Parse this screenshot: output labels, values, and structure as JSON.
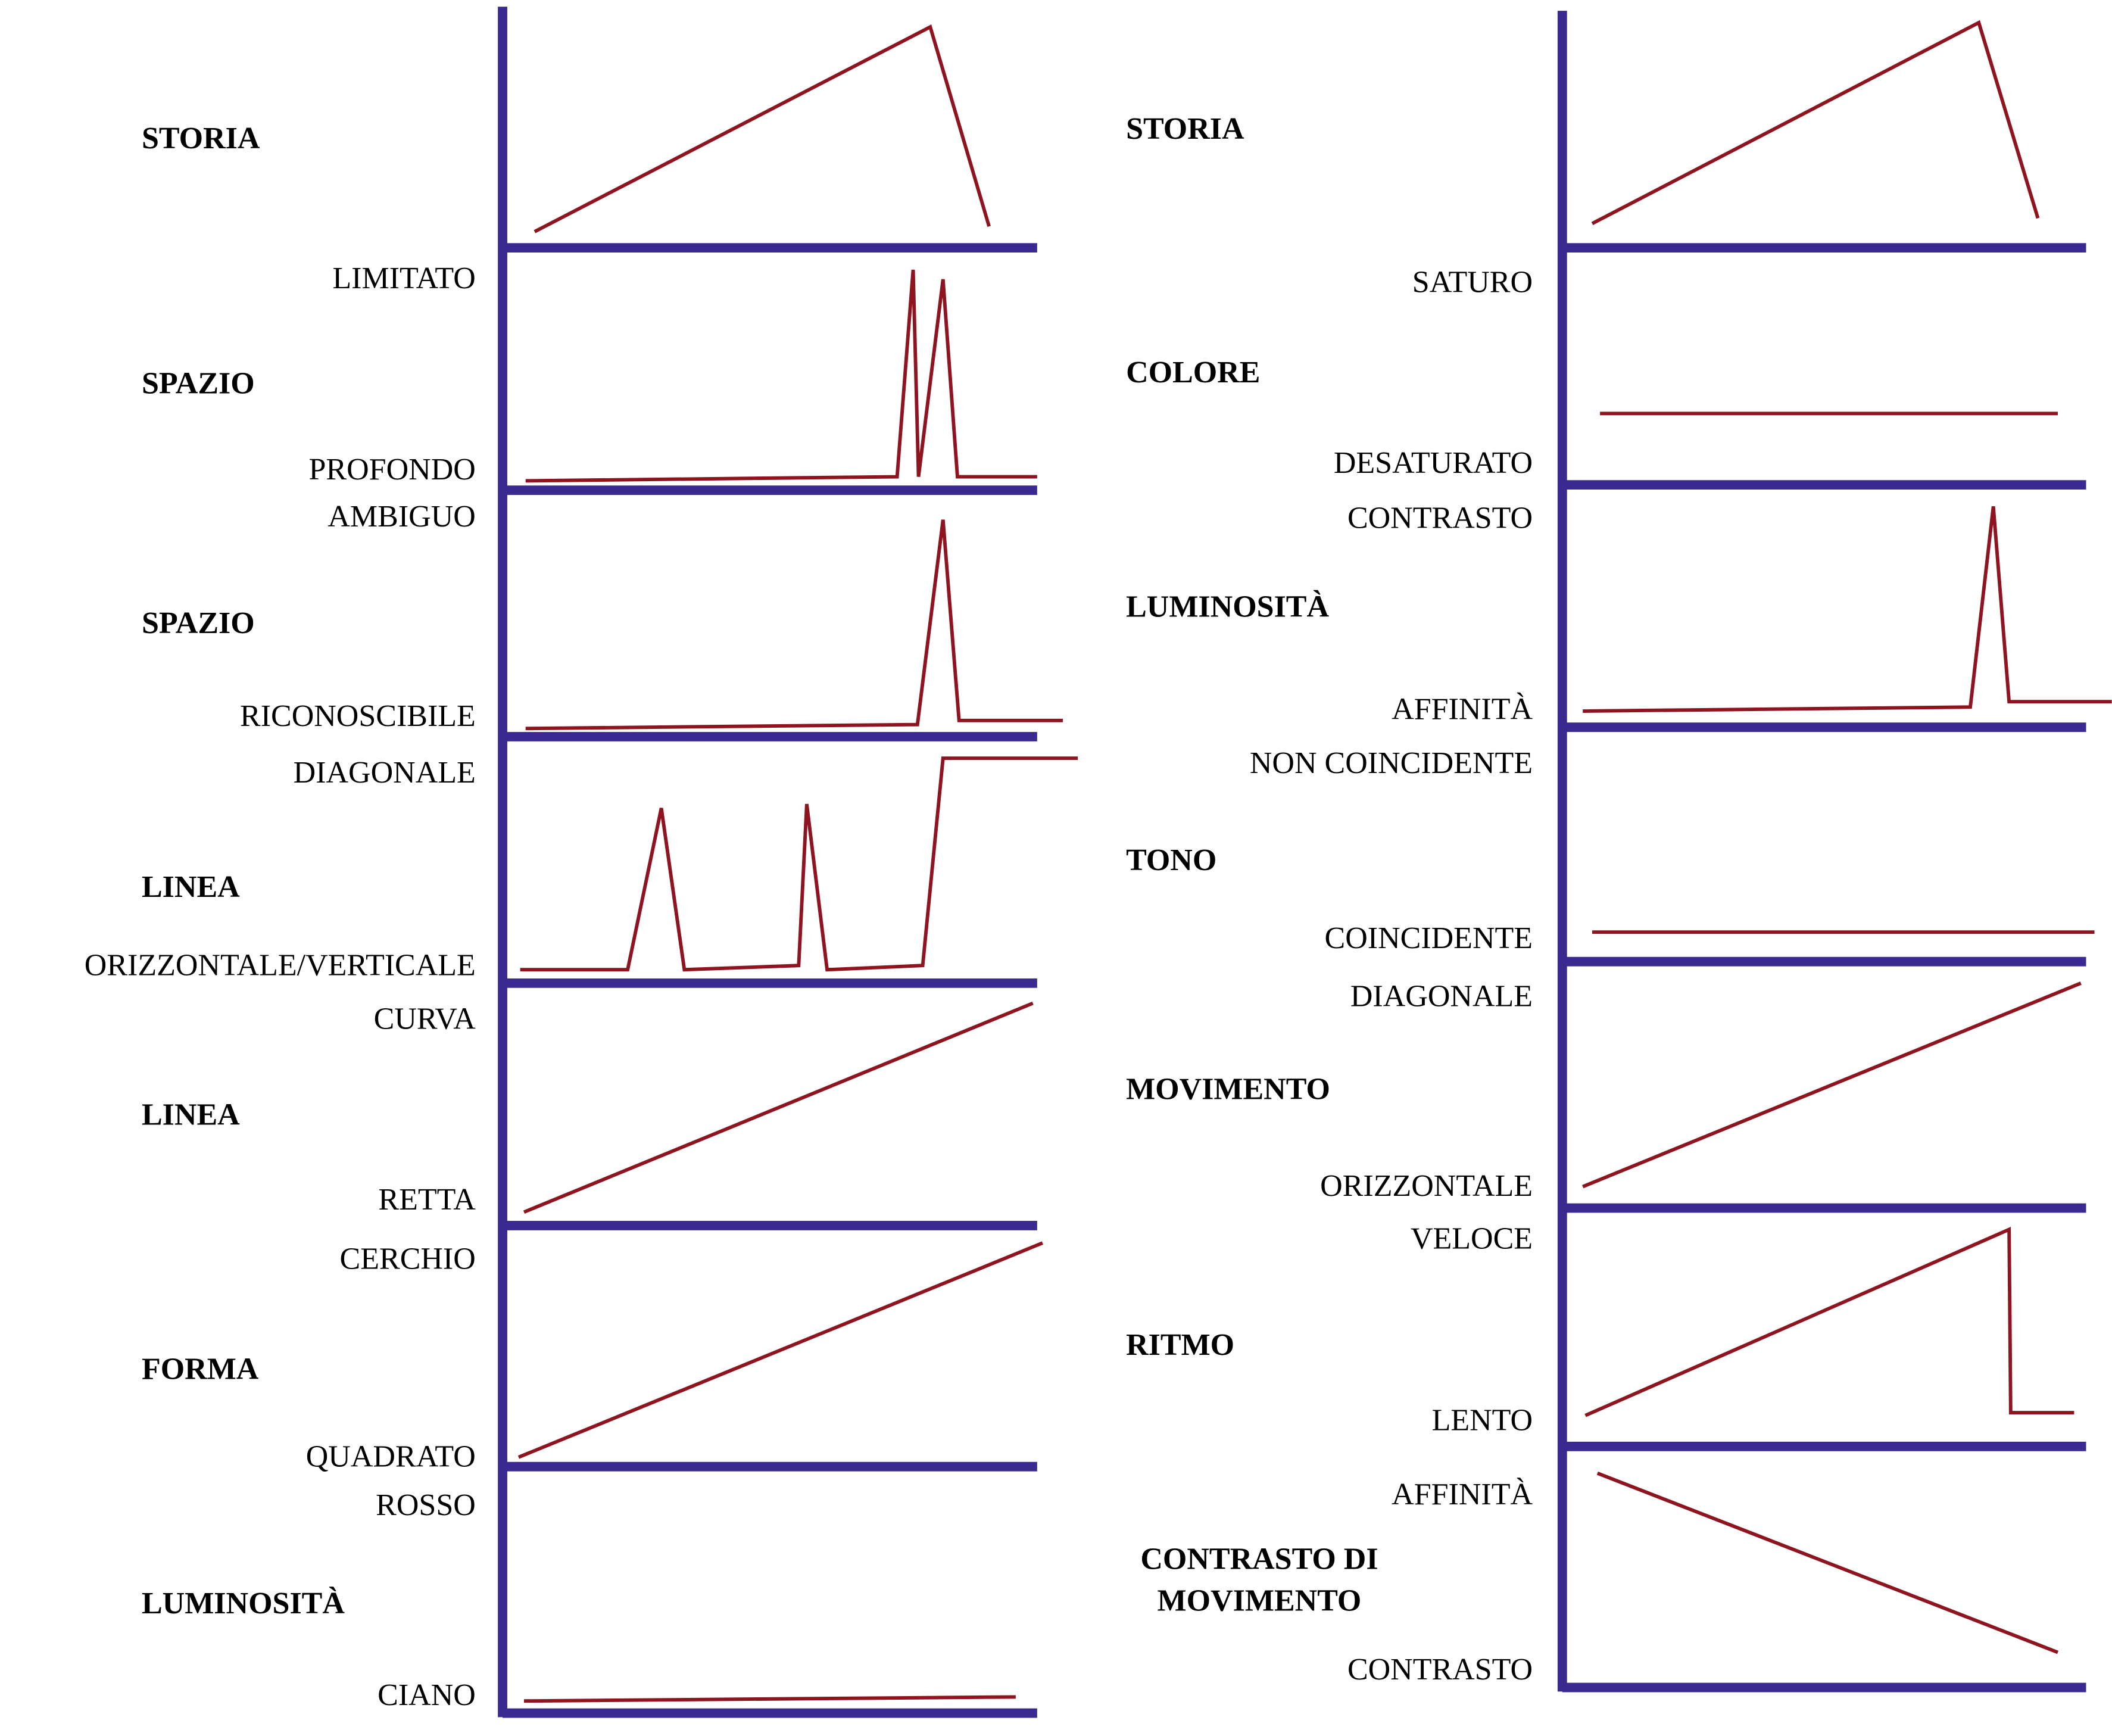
{
  "chart_data": [
    {
      "type": "line",
      "title": "STORIA",
      "top_label": "",
      "bottom_label": "",
      "x": [
        6,
        80,
        91
      ],
      "y": [
        6.7,
        91.6,
        8.9
      ]
    },
    {
      "type": "line",
      "title": "SPAZIO",
      "top_label": "LIMITATO",
      "bottom_label": "PROFONDO",
      "x": [
        4.3,
        73.8,
        76.8,
        77.8,
        82.4,
        85.1,
        100
      ],
      "y": [
        4,
        5.7,
        93,
        5.7,
        89,
        5.7,
        5.7
      ]
    },
    {
      "type": "line",
      "title": "SPAZIO",
      "top_label": "AMBIGUO",
      "bottom_label": "RICONOSCIBILE",
      "x": [
        4.3,
        77.6,
        82.4,
        85.4,
        104.8
      ],
      "y": [
        3.4,
        5,
        90,
        6.7,
        6.7
      ]
    },
    {
      "type": "line",
      "title": "LINEA",
      "top_label": "DIAGONALE",
      "bottom_label": "ORIZZONTALE/VERTICALE",
      "x": [
        3.3,
        23.4,
        29.7,
        34,
        55.4,
        56.9,
        60.7,
        78.6,
        82.4,
        107.6
      ],
      "y": [
        5.6,
        5.6,
        72.6,
        5.6,
        7.3,
        74.3,
        5.6,
        7.3,
        93.3,
        93.3
      ]
    },
    {
      "type": "line",
      "title": "LINEA",
      "top_label": "CURVA",
      "bottom_label": "RETTA",
      "x": [
        4,
        99.2
      ],
      "y": [
        5.7,
        93.8
      ]
    },
    {
      "type": "line",
      "title": "FORMA",
      "top_label": "CERCHIO",
      "bottom_label": "QUADRATO",
      "x": [
        3,
        101
      ],
      "y": [
        4,
        94.9
      ]
    },
    {
      "type": "line",
      "title": "LUMINOSITÀ",
      "top_label": "ROSSO",
      "bottom_label": "CIANO",
      "x": [
        4,
        96
      ],
      "y": [
        5,
        6.7
      ]
    },
    {
      "type": "line",
      "title": "STORIA",
      "top_label": "",
      "bottom_label": "",
      "x": [
        5.7,
        79.5,
        90.8
      ],
      "y": [
        10.2,
        95,
        12.5
      ]
    },
    {
      "type": "line",
      "title": "COLORE",
      "top_label": "SATURO",
      "bottom_label": "DESATURATO",
      "x": [
        7.2,
        94.6
      ],
      "y": [
        30.8,
        30.8
      ]
    },
    {
      "type": "line",
      "title": "LUMINOSITÀ",
      "top_label": "CONTRASTO",
      "bottom_label": "AFFINITÀ",
      "x": [
        3.9,
        77.9,
        82.3,
        85.3,
        104.9
      ],
      "y": [
        6.8,
        8.5,
        93.2,
        10.8,
        10.8
      ]
    },
    {
      "type": "line",
      "title": "TONO",
      "top_label": "NON COINCIDENTE",
      "bottom_label": "COINCIDENTE",
      "x": [
        5.7,
        101.6
      ],
      "y": [
        12.9,
        12.9
      ]
    },
    {
      "type": "line",
      "title": "MOVIMENTO",
      "top_label": "DIAGONALE",
      "bottom_label": "ORIZZONTALE",
      "x": [
        3.9,
        99
      ],
      "y": [
        8.9,
        93.3
      ]
    },
    {
      "type": "line",
      "title": "RITMO",
      "top_label": "VELOCE",
      "bottom_label": "LENTO",
      "x": [
        4.4,
        85.3,
        85.6,
        97.7
      ],
      "y": [
        13.3,
        93.1,
        14.5,
        14.5
      ]
    },
    {
      "type": "line",
      "title": "CONTRASTO DI\nMOVIMENTO",
      "top_label": "AFFINITÀ",
      "bottom_label": "CONTRASTO",
      "x": [
        6.7,
        94.6
      ],
      "y": [
        90.9,
        14.9
      ]
    }
  ],
  "colors": {
    "axis": "#3a2a8f",
    "line": "#8e1420"
  }
}
